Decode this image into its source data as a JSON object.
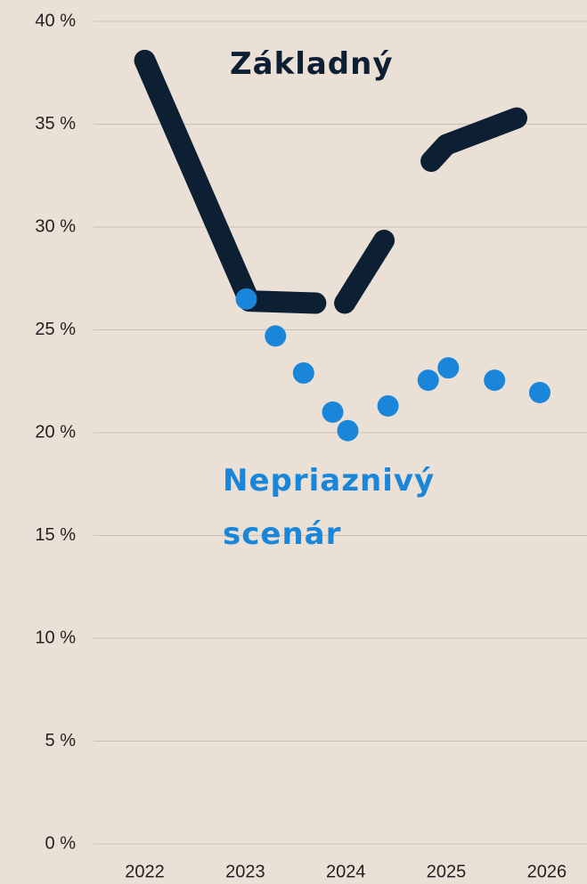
{
  "chart_data": {
    "type": "line",
    "xlim": [
      2021.49,
      2026.4
    ],
    "xticks": [
      2022,
      2023,
      2024,
      2025,
      2026
    ],
    "ylim": [
      0,
      40
    ],
    "yticks": [
      {
        "value": 0,
        "label": "0 %"
      },
      {
        "value": 5,
        "label": "5 %"
      },
      {
        "value": 10,
        "label": "10 %"
      },
      {
        "value": 15,
        "label": "15 %"
      },
      {
        "value": 20,
        "label": "20 %"
      },
      {
        "value": 25,
        "label": "25 %"
      },
      {
        "value": 30,
        "label": "30 %"
      },
      {
        "value": 35,
        "label": "35 %"
      },
      {
        "value": 40,
        "label": "40 %"
      }
    ],
    "grid": true,
    "series": [
      {
        "name": "Základný",
        "type": "line",
        "color": "#0d1f33",
        "x": [
          2022.0,
          2023.04,
          2023.7,
          2023.85,
          2023.99,
          2024.38,
          2024.6,
          2024.85,
          2025.0,
          2025.7
        ],
        "values": [
          38.1,
          26.4,
          26.3,
          null,
          26.3,
          29.35,
          null,
          33.2,
          34.0,
          35.3
        ]
      },
      {
        "name": "Nepriaznivý scenár",
        "type": "scatter",
        "color": "#1a86d9",
        "x": [
          2023.01,
          2023.3,
          2023.58,
          2023.87,
          2024.02,
          2024.42,
          2024.82,
          2025.02,
          2025.48,
          2025.93
        ],
        "values": [
          26.5,
          24.7,
          22.9,
          21.0,
          20.1,
          21.3,
          22.55,
          23.15,
          22.55,
          21.95
        ]
      }
    ]
  }
}
